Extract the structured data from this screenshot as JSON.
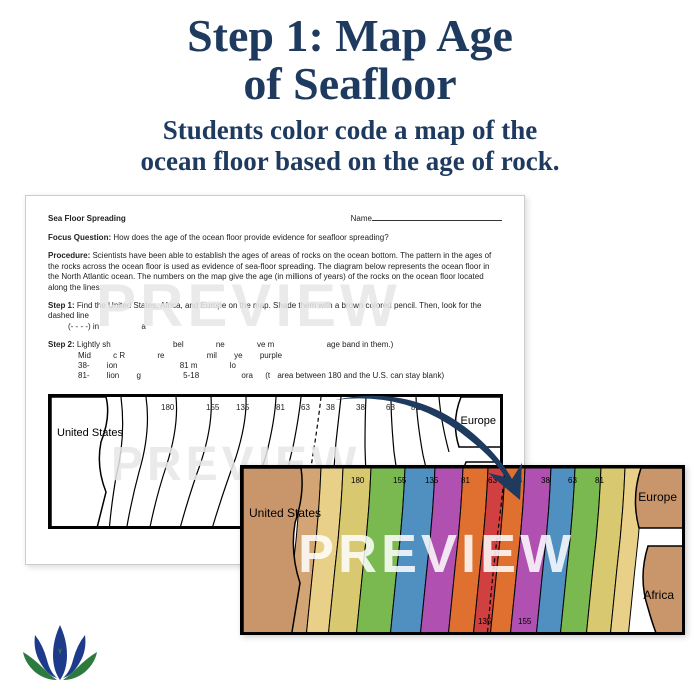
{
  "title_line1": "Step 1: Map Age",
  "title_line2": "of Seafloor",
  "subtitle_line1": "Students color code a map of the",
  "subtitle_line2": "ocean floor based on the age of rock.",
  "colors": {
    "heading": "#1e3a5f",
    "arrow": "#1e3a5f",
    "preview_text": "rgba(235,235,235,0.9)",
    "logo_blue": "#1e3a8a",
    "logo_green": "#2d7a3e"
  },
  "worksheet": {
    "title": "Sea Floor Spreading",
    "name_label": "Name",
    "focus_label": "Focus Question:",
    "focus_text": "How does the age of the ocean floor provide evidence for seafloor spreading?",
    "procedure_label": "Procedure:",
    "procedure_text": "Scientists have been able to establish the ages of areas of rocks on the ocean bottom. The pattern in the ages of the rocks across the ocean floor is used as evidence of sea-floor spreading. The diagram below represents the ocean floor in the North Atlantic ocean. The numbers on the map give the age (in millions of years) of the rocks on the ocean floor located along the lines.",
    "step1_label": "Step 1:",
    "step1_text": "Find the United States, Africa, and Europe on the map. Shade them with a brown colored pencil. Then, look for the dashed line",
    "step2_label": "Step 2:",
    "step2_text_fragments": [
      "Lightly sh",
      "Mid",
      "38-",
      "81-",
      "bel",
      "mil",
      "81 m",
      "5-18",
      "age band in them.)",
      "purple",
      "ora",
      "area between 180 and the U.S. can stay blank)"
    ],
    "preview_text": "PREVIEW"
  },
  "map": {
    "label_us": "United States",
    "label_europe": "Europe",
    "label_africa": "Africa",
    "age_numbers": [
      "180",
      "155",
      "135",
      "81",
      "63",
      "38",
      "38",
      "63",
      "81"
    ],
    "stripe_colors": [
      "#d4a574",
      "#e8d088",
      "#d8c870",
      "#7ab850",
      "#5090c0",
      "#b050b0",
      "#e07030",
      "#d04040",
      "#e07030",
      "#b050b0",
      "#5090c0",
      "#7ab850",
      "#d8c870",
      "#e8d088"
    ],
    "preview_text": "PREVIEW"
  }
}
